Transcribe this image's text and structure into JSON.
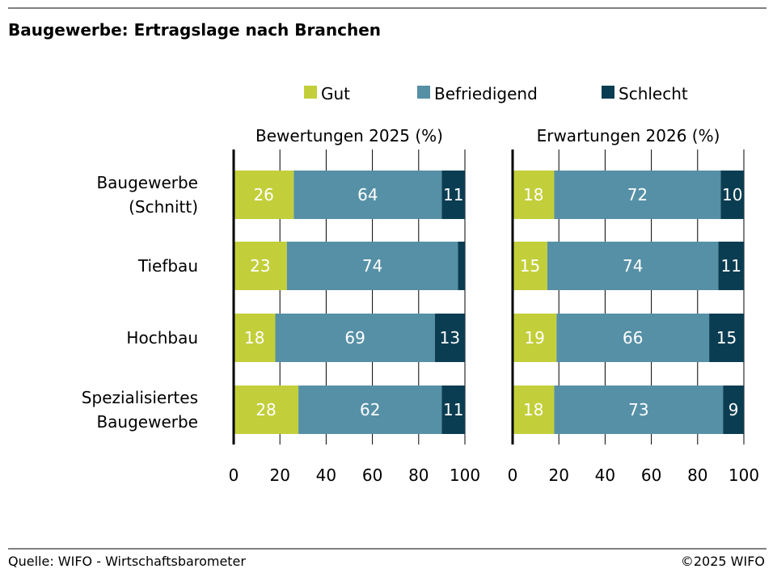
{
  "title": "Baugewerbe: Ertragslage nach Branchen",
  "source": "Quelle: WIFO - Wirtschaftsbarometer",
  "copyright": "©2025 WIFO",
  "colors": {
    "Gut": "#c2cf3a",
    "Befriedigend": "#5690a6",
    "Schlecht": "#0b3d52"
  },
  "chart_data": [
    {
      "type": "bar",
      "stacked": true,
      "orientation": "horizontal",
      "title": "Bewertungen 2025 (%)",
      "categories": [
        [
          "Baugewerbe",
          "(Schnitt)"
        ],
        [
          "Tiefbau"
        ],
        [
          "Hochbau"
        ],
        [
          "Spezialisiertes",
          "Baugewerbe"
        ]
      ],
      "series": [
        {
          "name": "Gut",
          "values": [
            26,
            23,
            18,
            28
          ]
        },
        {
          "name": "Befriedigend",
          "values": [
            64,
            74,
            69,
            62
          ]
        },
        {
          "name": "Schlecht",
          "values": [
            11,
            3,
            13,
            11
          ]
        }
      ],
      "data_labels": [
        [
          "26",
          "64",
          "11"
        ],
        [
          "23",
          "74",
          ""
        ],
        [
          "18",
          "69",
          "13"
        ],
        [
          "28",
          "62",
          "11"
        ]
      ],
      "xlim": [
        0,
        100
      ],
      "xticks": [
        "0",
        "20",
        "40",
        "60",
        "80",
        "100"
      ],
      "grid": true,
      "legend": "top"
    },
    {
      "type": "bar",
      "stacked": true,
      "orientation": "horizontal",
      "title": "Erwartungen 2026 (%)",
      "categories": [
        [
          "Baugewerbe",
          "(Schnitt)"
        ],
        [
          "Tiefbau"
        ],
        [
          "Hochbau"
        ],
        [
          "Spezialisiertes",
          "Baugewerbe"
        ]
      ],
      "series": [
        {
          "name": "Gut",
          "values": [
            18,
            15,
            19,
            18
          ]
        },
        {
          "name": "Befriedigend",
          "values": [
            72,
            74,
            66,
            73
          ]
        },
        {
          "name": "Schlecht",
          "values": [
            10,
            11,
            15,
            9
          ]
        }
      ],
      "data_labels": [
        [
          "18",
          "72",
          "10"
        ],
        [
          "15",
          "74",
          "11"
        ],
        [
          "19",
          "66",
          "15"
        ],
        [
          "18",
          "73",
          "9"
        ]
      ],
      "xlim": [
        0,
        100
      ],
      "xticks": [
        "0",
        "20",
        "40",
        "60",
        "80",
        "100"
      ],
      "grid": true,
      "legend": "top"
    }
  ]
}
